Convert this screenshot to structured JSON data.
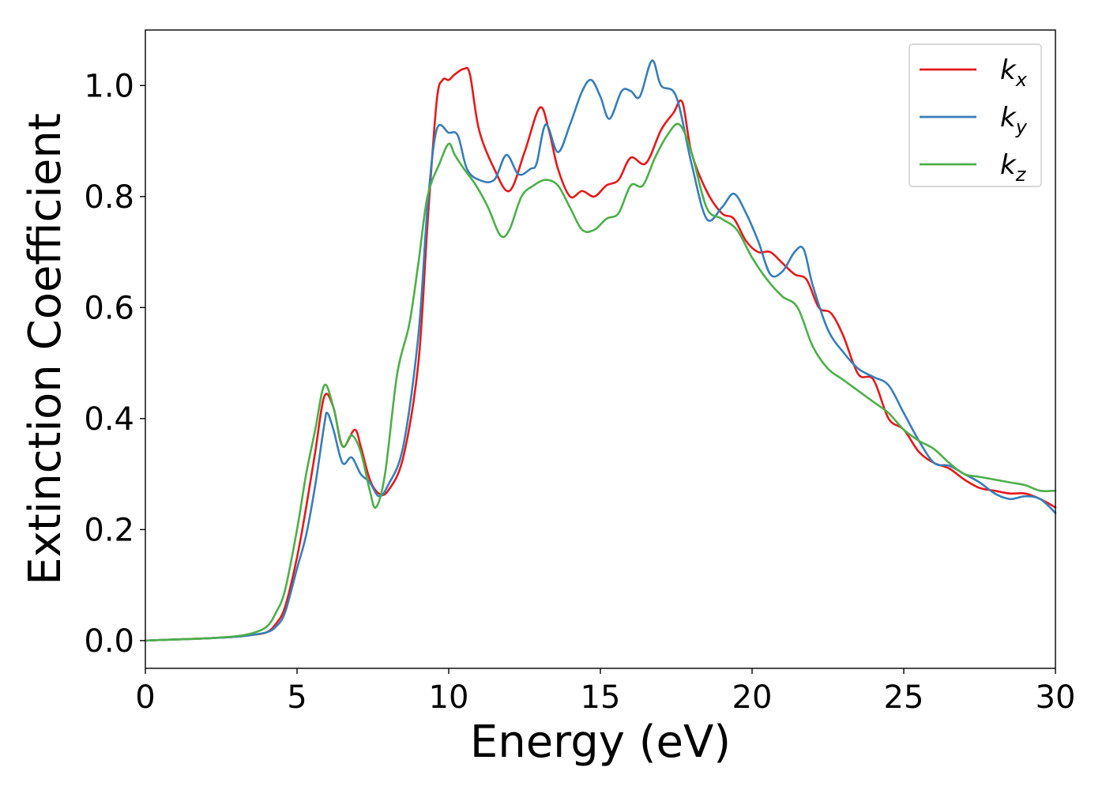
{
  "chart_data": {
    "type": "line",
    "title": "",
    "xlabel": "Energy (eV)",
    "ylabel": "Extinction Coefficient",
    "xlim": [
      0,
      30
    ],
    "ylim": [
      -0.05,
      1.1
    ],
    "xticks": [
      0,
      5,
      10,
      15,
      20,
      25,
      30
    ],
    "xtick_labels": [
      "0",
      "5",
      "10",
      "15",
      "20",
      "25",
      "30"
    ],
    "yticks": [
      0.0,
      0.2,
      0.4,
      0.6,
      0.8,
      1.0
    ],
    "ytick_labels": [
      "0.0",
      "0.2",
      "0.4",
      "0.6",
      "0.8",
      "1.0"
    ],
    "grid": false,
    "legend_position": "top-right",
    "series": [
      {
        "name": "k_x",
        "label_main": "k",
        "label_sub": "x",
        "color": "#e41a1c",
        "x": [
          0,
          1,
          2,
          3,
          3.5,
          4,
          4.3,
          4.6,
          5.0,
          5.3,
          5.6,
          5.9,
          6.2,
          6.5,
          6.9,
          7.1,
          7.4,
          7.7,
          8.0,
          8.5,
          9.0,
          9.3,
          9.6,
          9.8,
          10.0,
          10.2,
          10.5,
          10.7,
          11.0,
          11.5,
          12.0,
          12.5,
          13.0,
          13.3,
          13.6,
          14.0,
          14.4,
          14.8,
          15.2,
          15.6,
          16.0,
          16.5,
          17.0,
          17.4,
          17.7,
          18.0,
          18.5,
          19.0,
          19.4,
          19.8,
          20.2,
          20.6,
          21.0,
          21.4,
          21.8,
          22.2,
          22.6,
          23.0,
          23.5,
          24.0,
          24.5,
          25.0,
          25.5,
          26.0,
          26.5,
          27.0,
          27.5,
          28.0,
          28.5,
          29.0,
          29.5,
          30.0
        ],
        "y": [
          0.0,
          0.002,
          0.004,
          0.007,
          0.01,
          0.015,
          0.03,
          0.06,
          0.15,
          0.24,
          0.34,
          0.44,
          0.42,
          0.35,
          0.38,
          0.35,
          0.29,
          0.265,
          0.27,
          0.33,
          0.5,
          0.75,
          0.97,
          1.01,
          1.01,
          1.02,
          1.03,
          1.02,
          0.92,
          0.85,
          0.81,
          0.88,
          0.96,
          0.92,
          0.85,
          0.8,
          0.81,
          0.8,
          0.82,
          0.83,
          0.87,
          0.86,
          0.92,
          0.95,
          0.97,
          0.88,
          0.81,
          0.77,
          0.76,
          0.72,
          0.7,
          0.7,
          0.68,
          0.66,
          0.65,
          0.6,
          0.59,
          0.55,
          0.48,
          0.47,
          0.4,
          0.38,
          0.34,
          0.32,
          0.31,
          0.29,
          0.275,
          0.27,
          0.265,
          0.265,
          0.255,
          0.24
        ]
      },
      {
        "name": "k_y",
        "label_main": "k",
        "label_sub": "y",
        "color": "#377eb8",
        "x": [
          0,
          1,
          2,
          3,
          3.5,
          4,
          4.3,
          4.6,
          5.0,
          5.3,
          5.6,
          5.9,
          6.0,
          6.2,
          6.5,
          6.8,
          7.1,
          7.4,
          7.7,
          8.0,
          8.5,
          9.0,
          9.3,
          9.6,
          10.0,
          10.3,
          10.6,
          11.0,
          11.5,
          11.9,
          12.3,
          12.7,
          12.9,
          13.2,
          13.6,
          14.0,
          14.4,
          14.7,
          15.0,
          15.3,
          15.7,
          16.0,
          16.3,
          16.7,
          17.0,
          17.5,
          18.0,
          18.5,
          19.0,
          19.4,
          19.8,
          20.2,
          20.6,
          21.0,
          21.4,
          21.7,
          22.0,
          22.5,
          23.0,
          23.5,
          24.0,
          24.5,
          25.0,
          25.5,
          26.0,
          26.5,
          27.0,
          27.5,
          28.0,
          28.5,
          29.0,
          29.5,
          30.0
        ],
        "y": [
          0.0,
          0.002,
          0.004,
          0.007,
          0.01,
          0.015,
          0.025,
          0.05,
          0.13,
          0.19,
          0.28,
          0.39,
          0.41,
          0.38,
          0.32,
          0.33,
          0.3,
          0.285,
          0.26,
          0.28,
          0.35,
          0.55,
          0.78,
          0.92,
          0.915,
          0.91,
          0.85,
          0.83,
          0.83,
          0.875,
          0.84,
          0.85,
          0.86,
          0.93,
          0.88,
          0.93,
          0.99,
          1.01,
          0.98,
          0.94,
          0.99,
          0.99,
          0.98,
          1.045,
          1.0,
          0.98,
          0.86,
          0.76,
          0.78,
          0.805,
          0.77,
          0.72,
          0.66,
          0.665,
          0.7,
          0.705,
          0.64,
          0.56,
          0.52,
          0.49,
          0.475,
          0.46,
          0.41,
          0.36,
          0.32,
          0.315,
          0.3,
          0.285,
          0.265,
          0.255,
          0.26,
          0.255,
          0.23
        ]
      },
      {
        "name": "k_z",
        "label_main": "k",
        "label_sub": "z",
        "color": "#4daf4a",
        "x": [
          0,
          1,
          2,
          3,
          3.5,
          4,
          4.3,
          4.6,
          5.0,
          5.3,
          5.6,
          5.9,
          6.2,
          6.5,
          6.8,
          7.1,
          7.4,
          7.6,
          7.9,
          8.3,
          8.7,
          9.0,
          9.3,
          9.7,
          10.0,
          10.2,
          10.5,
          10.9,
          11.3,
          11.7,
          12.0,
          12.4,
          12.8,
          13.2,
          13.6,
          14.0,
          14.4,
          14.8,
          15.2,
          15.6,
          16.0,
          16.4,
          16.8,
          17.2,
          17.6,
          18.0,
          18.5,
          19.0,
          19.5,
          20.0,
          20.5,
          21.0,
          21.5,
          22.0,
          22.5,
          23.0,
          23.5,
          24.0,
          24.5,
          25.0,
          25.5,
          26.0,
          26.5,
          27.0,
          27.5,
          28.0,
          28.5,
          29.0,
          29.5,
          30.0
        ],
        "y": [
          0.0,
          0.002,
          0.004,
          0.008,
          0.013,
          0.025,
          0.05,
          0.09,
          0.2,
          0.3,
          0.38,
          0.46,
          0.42,
          0.35,
          0.37,
          0.34,
          0.27,
          0.24,
          0.3,
          0.48,
          0.57,
          0.68,
          0.8,
          0.86,
          0.895,
          0.875,
          0.85,
          0.82,
          0.78,
          0.73,
          0.74,
          0.8,
          0.82,
          0.83,
          0.82,
          0.78,
          0.74,
          0.74,
          0.76,
          0.77,
          0.82,
          0.82,
          0.87,
          0.91,
          0.93,
          0.88,
          0.78,
          0.76,
          0.74,
          0.69,
          0.65,
          0.62,
          0.6,
          0.53,
          0.49,
          0.47,
          0.45,
          0.43,
          0.41,
          0.38,
          0.36,
          0.345,
          0.32,
          0.3,
          0.295,
          0.29,
          0.285,
          0.28,
          0.27,
          0.27
        ]
      }
    ]
  }
}
